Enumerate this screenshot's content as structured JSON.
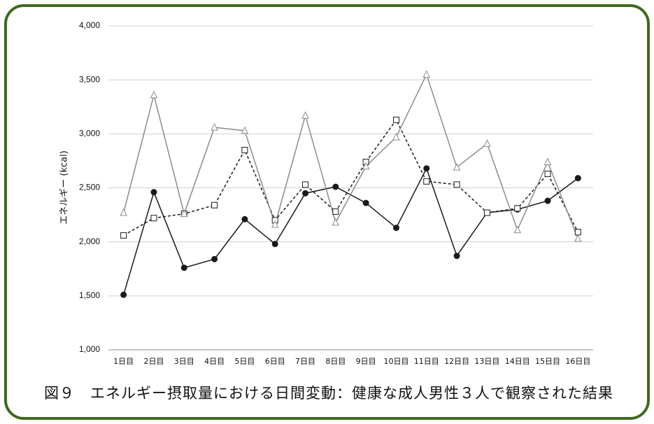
{
  "chart_data": {
    "type": "line",
    "caption": "図９　エネルギー摂取量における日間変動：健康な成人男性３人で観察された結果",
    "y_label": "エネルギー (kcal)",
    "categories": [
      "1日目",
      "2日目",
      "3日目",
      "4日目",
      "5日目",
      "6日目",
      "7日目",
      "8日目",
      "9日目",
      "10日目",
      "11日目",
      "12日目",
      "13日目",
      "14日目",
      "15日目",
      "16日目"
    ],
    "series": [
      {
        "color": "#1a1a1a",
        "marker": "circle",
        "marker_fill": "#1a1a1a",
        "dashed": false,
        "values": [
          1510,
          2460,
          1760,
          1840,
          2210,
          1980,
          2450,
          2510,
          2360,
          2130,
          2680,
          1870,
          2270,
          2300,
          2380,
          2590
        ]
      },
      {
        "color": "#1a1a1a",
        "marker": "square",
        "marker_fill": "#ffffff",
        "dashed": true,
        "values": [
          2060,
          2220,
          2260,
          2340,
          2850,
          2200,
          2530,
          2280,
          2740,
          3130,
          2560,
          2530,
          2270,
          2310,
          2630,
          2090
        ]
      },
      {
        "color": "#8c8c8c",
        "marker": "triangle",
        "marker_fill": "#ffffff",
        "dashed": false,
        "values": [
          2270,
          3360,
          2260,
          3060,
          3030,
          2160,
          3170,
          2180,
          2700,
          2970,
          3550,
          2690,
          2910,
          2110,
          2740,
          2030
        ]
      }
    ],
    "ylim": [
      1000,
      4000
    ],
    "yticks": [
      {
        "value": 1000,
        "label": "1,000"
      },
      {
        "value": 1500,
        "label": "1,500"
      },
      {
        "value": 2000,
        "label": "2,000"
      },
      {
        "value": 2500,
        "label": "2,500"
      },
      {
        "value": 3000,
        "label": "3,000"
      },
      {
        "value": 3500,
        "label": "3,500"
      },
      {
        "value": 4000,
        "label": "4,000"
      }
    ],
    "grid": true
  }
}
